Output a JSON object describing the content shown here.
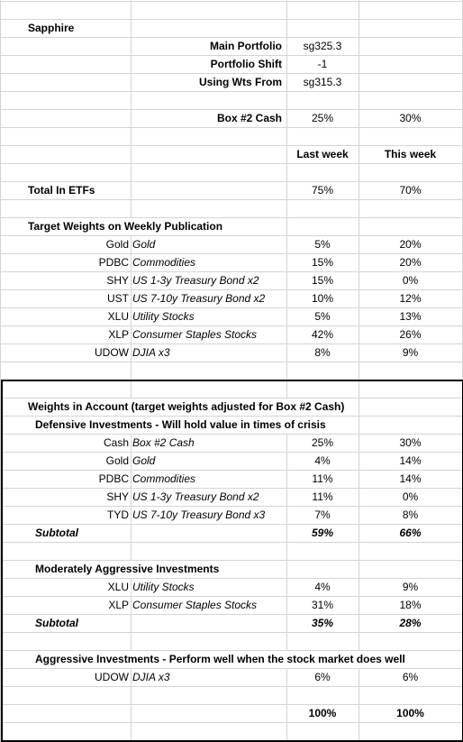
{
  "title": "Sapphire",
  "settings": [
    {
      "label": "Main Portfolio",
      "value": "sg325.3"
    },
    {
      "label": "Portfolio Shift",
      "value": "-1"
    },
    {
      "label": "Using Wts From",
      "value": "sg315.3"
    }
  ],
  "box_cash": {
    "label": "Box #2 Cash",
    "last_week": "25%",
    "this_week": "30%"
  },
  "columns": [
    "Last week",
    "This week"
  ],
  "total_etfs": {
    "label": "Total In ETFs",
    "last_week": "75%",
    "this_week": "70%"
  },
  "target": {
    "title": "Target Weights on Weekly Publication",
    "rows": [
      {
        "ticker": "Gold",
        "name": "Gold",
        "last_week": "5%",
        "this_week": "20%"
      },
      {
        "ticker": "PDBC",
        "name": "Commodities",
        "last_week": "15%",
        "this_week": "20%"
      },
      {
        "ticker": "SHY",
        "name": "US 1-3y Treasury Bond x2",
        "last_week": "15%",
        "this_week": "0%"
      },
      {
        "ticker": "UST",
        "name": "US 7-10y Treasury Bond x2",
        "last_week": "10%",
        "this_week": "12%"
      },
      {
        "ticker": "XLU",
        "name": "Utility Stocks",
        "last_week": "5%",
        "this_week": "13%"
      },
      {
        "ticker": "XLP",
        "name": "Consumer Staples Stocks",
        "last_week": "42%",
        "this_week": "26%"
      },
      {
        "ticker": "UDOW",
        "name": "DJIA x3",
        "last_week": "8%",
        "this_week": "9%"
      }
    ]
  },
  "account": {
    "title": "Weights in Account (target weights adjusted for Box #2 Cash)",
    "sections": [
      {
        "title": "Defensive Investments - Will hold value in times of crisis",
        "rows": [
          {
            "ticker": "Cash",
            "name": "Box #2 Cash",
            "last_week": "25%",
            "this_week": "30%"
          },
          {
            "ticker": "Gold",
            "name": "Gold",
            "last_week": "4%",
            "this_week": "14%"
          },
          {
            "ticker": "PDBC",
            "name": "Commodities",
            "last_week": "11%",
            "this_week": "14%"
          },
          {
            "ticker": "SHY",
            "name": "US 1-3y Treasury Bond x2",
            "last_week": "11%",
            "this_week": "0%"
          },
          {
            "ticker": "TYD",
            "name": "US 7-10y Treasury Bond x3",
            "last_week": "7%",
            "this_week": "8%"
          }
        ],
        "subtotal": {
          "label": "Subtotal",
          "last_week": "59%",
          "this_week": "66%"
        }
      },
      {
        "title": "Moderately Aggressive Investments",
        "rows": [
          {
            "ticker": "XLU",
            "name": "Utility Stocks",
            "last_week": "4%",
            "this_week": "9%"
          },
          {
            "ticker": "XLP",
            "name": "Consumer Staples Stocks",
            "last_week": "31%",
            "this_week": "18%"
          }
        ],
        "subtotal": {
          "label": "Subtotal",
          "last_week": "35%",
          "this_week": "28%"
        }
      },
      {
        "title": "Aggressive Investments - Perform well when the stock market does well",
        "rows": [
          {
            "ticker": "UDOW",
            "name": "DJIA x3",
            "last_week": "6%",
            "this_week": "6%"
          }
        ]
      }
    ],
    "total": {
      "last_week": "100%",
      "this_week": "100%"
    }
  }
}
